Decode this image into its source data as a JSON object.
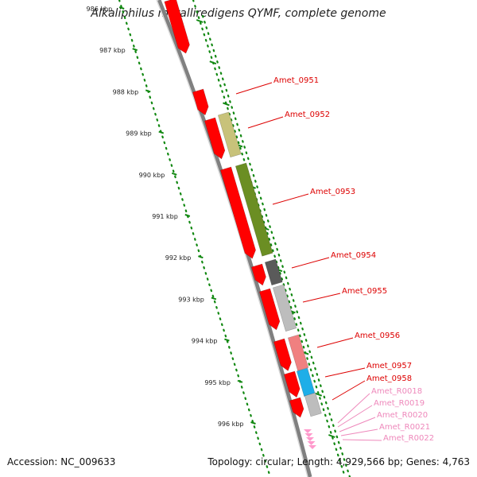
{
  "title": "Alkaliphilus metalliredigens QYMF, complete genome",
  "accession": "Accession: NC_009633",
  "topology": "Topology: circular; Length: 4,929,566 bp; Genes: 4,763",
  "colors": {
    "forward_cds": "#ff0000",
    "tick_marks": "#118811",
    "backbone": "#808080",
    "label_cds": "#dd0000",
    "label_rna": "#ee88bb",
    "rna_feature": "#ff99cc"
  },
  "ruler_labels": [
    "986 kbp",
    "987 kbp",
    "988 kbp",
    "989 kbp",
    "990 kbp",
    "991 kbp",
    "992 kbp",
    "993 kbp",
    "994 kbp",
    "995 kbp",
    "996 kbp"
  ],
  "gene_labels": [
    {
      "text": "Amet_0951",
      "kind": "cds"
    },
    {
      "text": "Amet_0952",
      "kind": "cds"
    },
    {
      "text": "Amet_0953",
      "kind": "cds"
    },
    {
      "text": "Amet_0954",
      "kind": "cds"
    },
    {
      "text": "Amet_0955",
      "kind": "cds"
    },
    {
      "text": "Amet_0956",
      "kind": "cds"
    },
    {
      "text": "Amet_0957",
      "kind": "cds"
    },
    {
      "text": "Amet_0958",
      "kind": "cds"
    },
    {
      "text": "Amet_R0018",
      "kind": "rna"
    },
    {
      "text": "Amet_R0019",
      "kind": "rna"
    },
    {
      "text": "Amet_R0020",
      "kind": "rna"
    },
    {
      "text": "Amet_R0021",
      "kind": "rna"
    },
    {
      "text": "Amet_R0022",
      "kind": "rna"
    }
  ],
  "reverse_features": [
    {
      "color": "#c8c27a"
    },
    {
      "color": "#6b8e23"
    },
    {
      "color": "#5a5a5a"
    },
    {
      "color": "#bdbdbd"
    },
    {
      "color": "#f08080"
    },
    {
      "color": "#1eaee8"
    },
    {
      "color": "#bdbdbd"
    }
  ]
}
